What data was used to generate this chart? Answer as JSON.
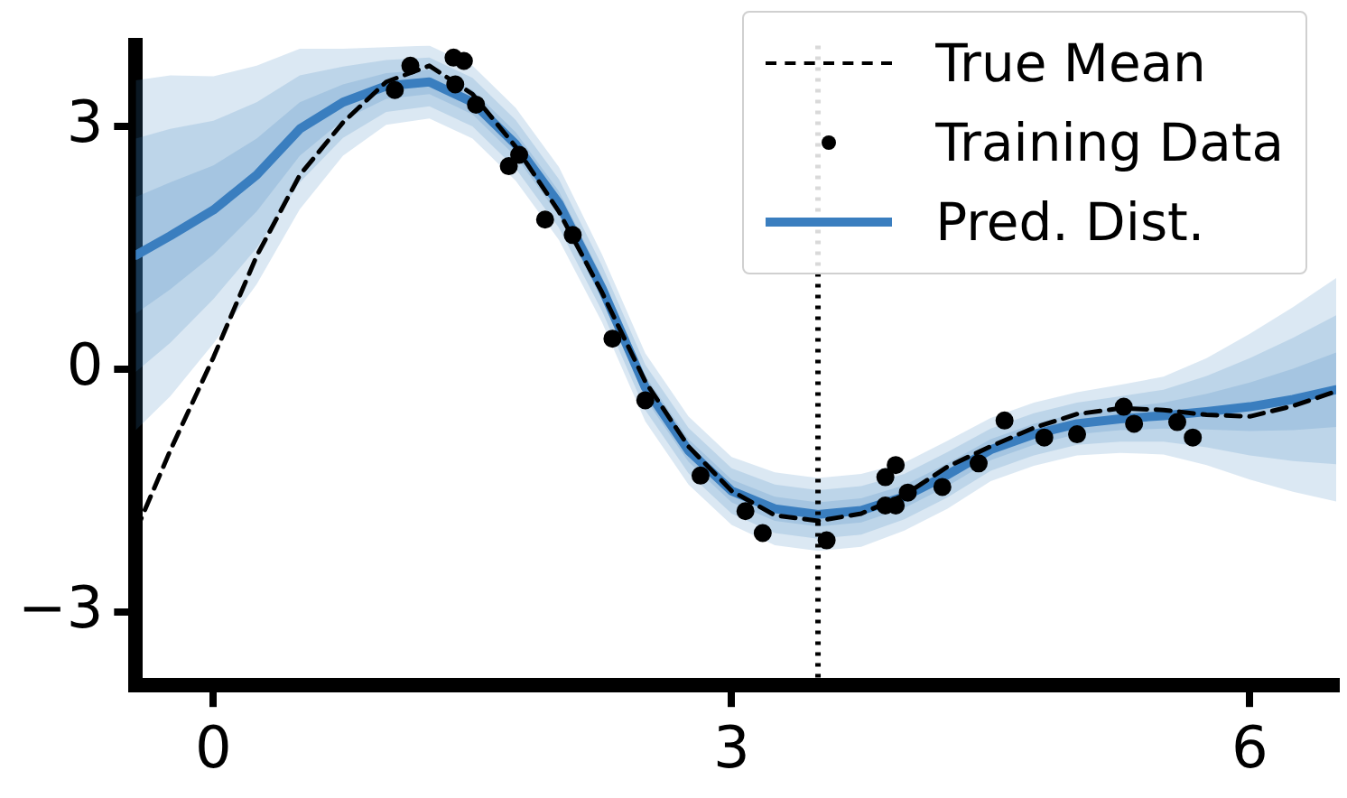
{
  "chart_data": {
    "type": "line",
    "xlim": [
      -0.45,
      6.5
    ],
    "xticks": [
      0,
      3,
      6
    ],
    "ylim": [
      -3.9,
      4.0
    ],
    "yticks": [
      {
        "value": -3,
        "label": "−3"
      },
      0,
      3
    ],
    "legend": "top right",
    "ref_lines": [
      {
        "axis": "x",
        "value": 3.5,
        "color": "#000000",
        "line_style": "dotted"
      }
    ],
    "series": [
      {
        "name": "True Mean",
        "color": "#000000",
        "line_style": "dashed",
        "marker": "none",
        "x": [
          -0.45,
          -0.25,
          0,
          0.25,
          0.5,
          0.75,
          1,
          1.25,
          1.5,
          1.75,
          2,
          2.25,
          2.5,
          2.75,
          3,
          3.25,
          3.5,
          3.75,
          4,
          4.25,
          4.5,
          4.75,
          5,
          5.25,
          5.5,
          5.75,
          6,
          6.25,
          6.5
        ],
        "values": [
          -2.0,
          -1.0,
          0.15,
          1.4,
          2.4,
          3.05,
          3.55,
          3.75,
          3.4,
          2.75,
          1.95,
          0.95,
          -0.15,
          -0.95,
          -1.5,
          -1.8,
          -1.87,
          -1.78,
          -1.55,
          -1.2,
          -0.95,
          -0.72,
          -0.55,
          -0.48,
          -0.5,
          -0.56,
          -0.58,
          -0.45,
          -0.27
        ]
      },
      {
        "name": "Training Data",
        "type": "scatter",
        "color": "#000000",
        "marker": "circle",
        "x": [
          1.05,
          1.14,
          1.39,
          1.45,
          1.4,
          1.52,
          1.77,
          1.71,
          1.92,
          2.08,
          2.31,
          2.5,
          2.82,
          3.08,
          3.18,
          3.55,
          3.89,
          3.95,
          3.89,
          3.95,
          4.02,
          4.22,
          4.43,
          4.58,
          4.81,
          5.0,
          5.27,
          5.33,
          5.58,
          5.67
        ],
        "values": [
          3.45,
          3.75,
          3.85,
          3.81,
          3.52,
          3.27,
          2.65,
          2.51,
          1.85,
          1.66,
          0.38,
          -0.38,
          -1.31,
          -1.75,
          -2.02,
          -2.11,
          -1.33,
          -1.18,
          -1.68,
          -1.68,
          -1.52,
          -1.45,
          -1.16,
          -0.63,
          -0.84,
          -0.8,
          -0.46,
          -0.67,
          -0.65,
          -0.84
        ]
      },
      {
        "name": "Pred. Dist.",
        "color": "#3a7ebf",
        "marker": "none",
        "x": [
          -0.45,
          -0.25,
          0,
          0.25,
          0.5,
          0.75,
          1,
          1.25,
          1.5,
          1.75,
          2,
          2.25,
          2.5,
          2.75,
          3,
          3.25,
          3.5,
          3.75,
          4,
          4.25,
          4.5,
          4.75,
          5,
          5.25,
          5.5,
          5.75,
          6,
          6.25,
          6.5
        ],
        "values": [
          1.41,
          1.65,
          1.97,
          2.4,
          2.97,
          3.3,
          3.5,
          3.55,
          3.3,
          2.78,
          2.05,
          1.0,
          -0.22,
          -1.0,
          -1.5,
          -1.72,
          -1.79,
          -1.74,
          -1.57,
          -1.3,
          -0.99,
          -0.8,
          -0.67,
          -0.61,
          -0.57,
          -0.52,
          -0.46,
          -0.37,
          -0.25
        ],
        "lower": [
          0.69,
          0.99,
          1.42,
          1.95,
          2.64,
          3.08,
          3.34,
          3.4,
          3.15,
          2.63,
          1.9,
          0.86,
          -0.36,
          -1.14,
          -1.64,
          -1.87,
          -1.94,
          -1.89,
          -1.71,
          -1.44,
          -1.12,
          -0.93,
          -0.8,
          -0.75,
          -0.73,
          -0.74,
          -0.76,
          -0.75,
          -0.71
        ],
        "upper": [
          2.13,
          2.31,
          2.52,
          2.85,
          3.3,
          3.52,
          3.66,
          3.7,
          3.45,
          2.93,
          2.2,
          1.14,
          -0.08,
          -0.86,
          -1.36,
          -1.57,
          -1.64,
          -1.59,
          -1.43,
          -1.16,
          -0.86,
          -0.67,
          -0.54,
          -0.47,
          -0.41,
          -0.3,
          -0.16,
          0.01,
          0.21
        ]
      },
      {
        "type": "line",
        "color": "#3a7ebf",
        "x": [
          -0.45,
          -0.25,
          0,
          0.25,
          0.5,
          0.75,
          1,
          1.25,
          1.5,
          1.75,
          2,
          2.25,
          2.5,
          2.75,
          3,
          3.25,
          3.5,
          3.75,
          4,
          4.25,
          4.5,
          4.75,
          5,
          5.25,
          5.5,
          5.75,
          6,
          6.25,
          6.5
        ],
        "values": [
          null,
          null,
          null,
          null,
          null,
          null,
          null,
          null,
          null,
          null,
          null,
          null,
          null,
          null,
          null,
          null,
          null,
          null,
          null,
          null,
          null,
          null,
          null,
          null,
          null,
          null,
          null,
          null,
          null
        ],
        "lower": [
          -0.03,
          0.33,
          0.87,
          1.5,
          2.31,
          2.86,
          3.18,
          3.25,
          3.0,
          2.48,
          1.75,
          0.72,
          -0.5,
          -1.28,
          -1.78,
          -2.02,
          -2.09,
          -2.04,
          -1.85,
          -1.58,
          -1.25,
          -1.06,
          -0.93,
          -0.89,
          -0.89,
          -0.96,
          -1.06,
          -1.13,
          -1.17
        ],
        "upper": [
          2.85,
          2.97,
          3.07,
          3.3,
          3.63,
          3.74,
          3.82,
          3.85,
          3.6,
          3.08,
          2.35,
          1.28,
          0.06,
          -0.72,
          -1.22,
          -1.42,
          -1.49,
          -1.44,
          -1.29,
          -1.02,
          -0.73,
          -0.54,
          -0.41,
          -0.33,
          -0.25,
          -0.08,
          0.14,
          0.39,
          0.67
        ]
      },
      {
        "type": "line",
        "color": "#3a7ebf",
        "x": [
          -0.45,
          -0.25,
          0,
          0.25,
          0.5,
          0.75,
          1,
          1.25,
          1.5,
          1.75,
          2,
          2.25,
          2.5,
          2.75,
          3,
          3.25,
          3.5,
          3.75,
          4,
          4.25,
          4.5,
          4.75,
          5,
          5.25,
          5.5,
          5.75,
          6,
          6.25,
          6.5
        ],
        "values": [
          null,
          null,
          null,
          null,
          null,
          null,
          null,
          null,
          null,
          null,
          null,
          null,
          null,
          null,
          null,
          null,
          null,
          null,
          null,
          null,
          null,
          null,
          null,
          null,
          null,
          null,
          null,
          null,
          null
        ],
        "lower": [
          -0.75,
          -0.33,
          0.32,
          1.05,
          1.98,
          2.64,
          3.02,
          3.1,
          2.85,
          2.33,
          1.6,
          0.58,
          -0.64,
          -1.42,
          -1.92,
          -2.17,
          -2.24,
          -2.19,
          -1.99,
          -1.72,
          -1.38,
          -1.19,
          -1.06,
          -1.03,
          -1.05,
          -1.18,
          -1.36,
          -1.51,
          -1.63
        ],
        "upper": [
          3.57,
          3.63,
          3.62,
          3.75,
          3.96,
          3.96,
          3.98,
          4.0,
          3.75,
          3.23,
          2.5,
          1.42,
          0.2,
          -0.58,
          -1.08,
          -1.27,
          -1.34,
          -1.29,
          -1.15,
          -0.88,
          -0.6,
          -0.41,
          -0.28,
          -0.19,
          -0.09,
          0.14,
          0.44,
          0.77,
          1.13
        ]
      }
    ]
  }
}
